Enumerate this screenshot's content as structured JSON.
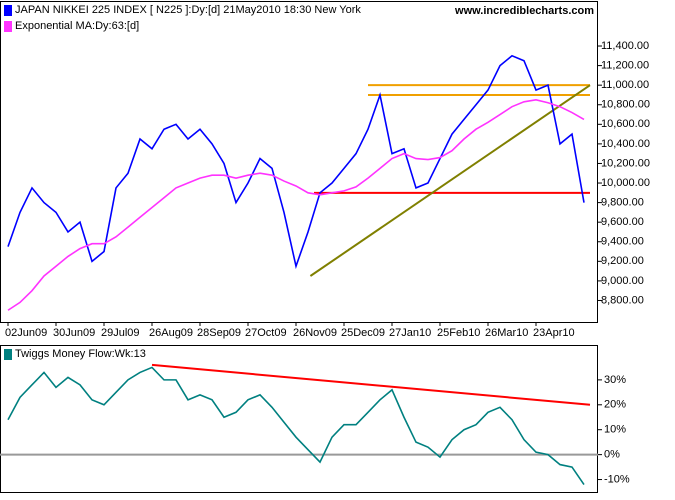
{
  "chart_data": [
    {
      "type": "line",
      "annotation": "www.incrediblecharts.com",
      "categories": [
        "02Jun09",
        null,
        null,
        null,
        "30Jun09",
        null,
        null,
        null,
        "29Jul09",
        null,
        null,
        null,
        "26Aug09",
        null,
        null,
        null,
        "28Sep09",
        null,
        null,
        null,
        "27Oct09",
        null,
        null,
        null,
        "26Nov09",
        null,
        null,
        null,
        "25Dec09",
        null,
        null,
        null,
        "27Jan10",
        null,
        null,
        null,
        "25Feb10",
        null,
        null,
        null,
        "26Mar10",
        null,
        null,
        null,
        "23Apr10",
        null,
        null,
        null,
        null
      ],
      "series": [
        {
          "name": "JAPAN NIKKEI 225 INDEX [ N225 ]:Dy:[d]  21May2010 18:30 New York",
          "color": "#0000ff",
          "values": [
            9350,
            9700,
            9950,
            9800,
            9700,
            9500,
            9600,
            9200,
            9300,
            9950,
            10100,
            10450,
            10350,
            10550,
            10600,
            10450,
            10550,
            10400,
            10200,
            9800,
            10000,
            10250,
            10150,
            9700,
            9150,
            9500,
            9900,
            10000,
            10150,
            10300,
            10550,
            10900,
            10300,
            10350,
            9950,
            10000,
            10250,
            10500,
            10650,
            10800,
            10950,
            11200,
            11300,
            11250,
            10950,
            11000,
            10400,
            10500,
            9800
          ]
        },
        {
          "name": "Exponential MA:Dy:63:[d]",
          "color": "#ff33ff",
          "values": [
            8700,
            8780,
            8900,
            9050,
            9150,
            9250,
            9330,
            9380,
            9380,
            9450,
            9550,
            9650,
            9750,
            9850,
            9950,
            10000,
            10050,
            10080,
            10080,
            10050,
            10080,
            10100,
            10080,
            10020,
            9970,
            9900,
            9880,
            9900,
            9920,
            9960,
            10050,
            10150,
            10250,
            10300,
            10250,
            10240,
            10260,
            10330,
            10450,
            10550,
            10620,
            10700,
            10780,
            10830,
            10850,
            10820,
            10780,
            10720,
            10650
          ]
        }
      ],
      "lines": [
        {
          "color": "#f0a000",
          "from": [
            30,
            11000
          ],
          "to": [
            48.5,
            11000
          ]
        },
        {
          "color": "#f0a000",
          "from": [
            30,
            10900
          ],
          "to": [
            48.5,
            10900
          ]
        },
        {
          "color": "#ff0000",
          "from": [
            25.5,
            9900
          ],
          "to": [
            48.5,
            9900
          ]
        },
        {
          "color": "#808000",
          "from": [
            25.2,
            9050
          ],
          "to": [
            48.5,
            11000
          ]
        }
      ],
      "ylim": [
        8580,
        11860
      ],
      "yticks": [
        {
          "value": 8800,
          "label": "8,800.00"
        },
        {
          "value": 9000,
          "label": "9,000.00"
        },
        {
          "value": 9200,
          "label": "9,200.00"
        },
        {
          "value": 9400,
          "label": "9,400.00"
        },
        {
          "value": 9600,
          "label": "9,600.00"
        },
        {
          "value": 9800,
          "label": "9,800.00"
        },
        {
          "value": 10000,
          "label": "10,000.00"
        },
        {
          "value": 10200,
          "label": "10,200.00"
        },
        {
          "value": 10400,
          "label": "10,400.00"
        },
        {
          "value": 10600,
          "label": "10,600.00"
        },
        {
          "value": 10800,
          "label": "10,800.00"
        },
        {
          "value": 11000,
          "label": "11,000.00"
        },
        {
          "value": 11200,
          "label": "11,200.00"
        },
        {
          "value": 11400,
          "label": "11,400.00"
        }
      ]
    },
    {
      "type": "line",
      "series": [
        {
          "name": "Twiggs Money Flow:Wk:13",
          "color": "#008080",
          "values": [
            14,
            23,
            28,
            33,
            27,
            31,
            28,
            22,
            20,
            25,
            30,
            33,
            35,
            30,
            30,
            22,
            24,
            22,
            15,
            17,
            22,
            24,
            19,
            13,
            7,
            2,
            -3,
            7,
            12,
            12,
            17,
            22,
            26,
            15,
            5,
            3,
            -1,
            6,
            10,
            12,
            17,
            19,
            14,
            6,
            1,
            0,
            -4,
            -5,
            -12
          ]
        }
      ],
      "lines": [
        {
          "color": "#999999",
          "from": [
            -1,
            0
          ],
          "to": [
            49.5,
            0
          ]
        },
        {
          "color": "#ff0000",
          "from": [
            12,
            36
          ],
          "to": [
            48.5,
            20
          ]
        }
      ],
      "ylim": [
        -15,
        44
      ],
      "yticks": [
        {
          "value": -10,
          "label": "-10%"
        },
        {
          "value": 0,
          "label": "0%"
        },
        {
          "value": 10,
          "label": "10%"
        },
        {
          "value": 20,
          "label": "20%"
        },
        {
          "value": 30,
          "label": "30%"
        }
      ]
    }
  ]
}
